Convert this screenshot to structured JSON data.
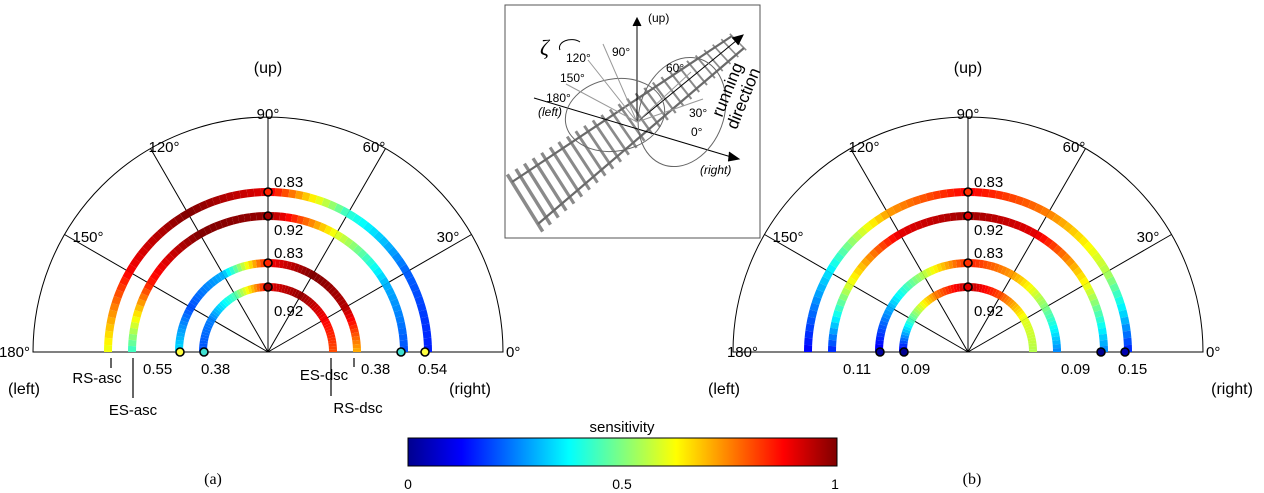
{
  "panels": [
    {
      "id": "a",
      "caption": "(a)",
      "up_label": "(up)",
      "left_label": "(left)",
      "right_label": "(right)",
      "angle_labels": [
        "180°",
        "150°",
        "120°",
        "90°",
        "60°",
        "30°",
        "0°"
      ],
      "arc_values": [
        "0.83",
        "0.92",
        "0.83",
        "0.92"
      ],
      "end_values": [
        "0.55",
        "0.38",
        "0.38",
        "0.54"
      ],
      "track_labels": [
        "RS-asc",
        "ES-asc",
        "ES-dsc",
        "RS-dsc"
      ]
    },
    {
      "id": "b",
      "caption": "(b)",
      "up_label": "(up)",
      "left_label": "(left)",
      "right_label": "(right)",
      "angle_labels": [
        "180°",
        "150°",
        "120°",
        "90°",
        "60°",
        "30°",
        "0°"
      ],
      "arc_values": [
        "0.83",
        "0.92",
        "0.83",
        "0.92"
      ],
      "end_values": [
        "0.11",
        "0.09",
        "0.09",
        "0.15"
      ]
    }
  ],
  "inset": {
    "up_label": "(up)",
    "left_label": "(left)",
    "right_label": "(right)",
    "zeta_symbol": "ζ",
    "angle_labels": [
      "120°",
      "90°",
      "60°",
      "150°",
      "30°",
      "180°",
      "0°"
    ],
    "direction_label_line1": "running",
    "direction_label_line2": "direction"
  },
  "colorbar": {
    "title": "sensitivity",
    "ticks": [
      "0",
      "0.5",
      "1"
    ]
  },
  "colors": {
    "colormap": "jet",
    "stops": [
      "#00008f",
      "#0000ff",
      "#0080ff",
      "#00ffff",
      "#80ff80",
      "#ffff00",
      "#ff8000",
      "#ff0000",
      "#800000"
    ]
  }
}
